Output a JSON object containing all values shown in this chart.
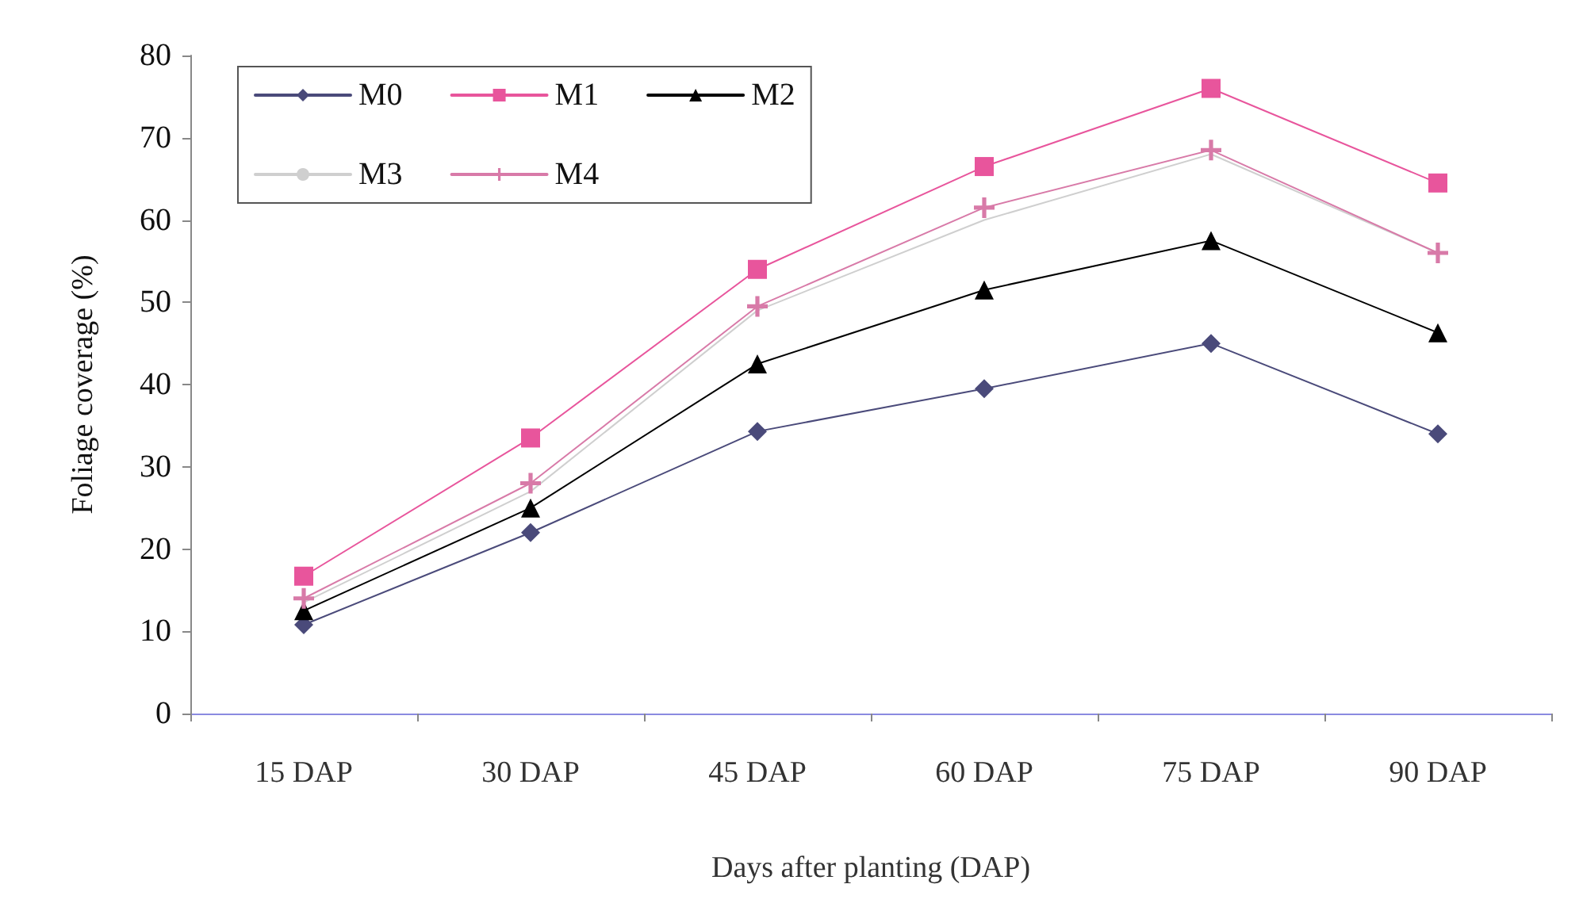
{
  "chart_data": {
    "type": "line",
    "xlabel": "Days after planting (DAP)",
    "ylabel": "Foliage coverage (%)",
    "categories": [
      "15 DAP",
      "30 DAP",
      "45 DAP",
      "60 DAP",
      "75 DAP",
      "90 DAP"
    ],
    "ylim": [
      0,
      80
    ],
    "yticks": [
      0,
      10,
      20,
      30,
      40,
      50,
      60,
      70,
      80
    ],
    "grid": false,
    "legend": "top left",
    "series": [
      {
        "name": "M0",
        "color": "#4a4a7a",
        "marker": "diamond",
        "values": [
          10.8,
          22,
          34.3,
          39.5,
          45,
          34
        ]
      },
      {
        "name": "M1",
        "color": "#e8559c",
        "marker": "square",
        "values": [
          16.7,
          33.5,
          54,
          66.5,
          76,
          64.5
        ]
      },
      {
        "name": "M2",
        "color": "#000000",
        "marker": "triangle",
        "values": [
          12.5,
          25,
          42.5,
          51.5,
          57.5,
          46.3
        ]
      },
      {
        "name": "M3",
        "color": "#cfcfcf",
        "marker": "none",
        "values": [
          13.5,
          27,
          49,
          60,
          68,
          56
        ]
      },
      {
        "name": "M4",
        "color": "#d87aa8",
        "marker": "cross",
        "values": [
          14,
          28,
          49.5,
          61.5,
          68.5,
          56
        ]
      }
    ]
  }
}
